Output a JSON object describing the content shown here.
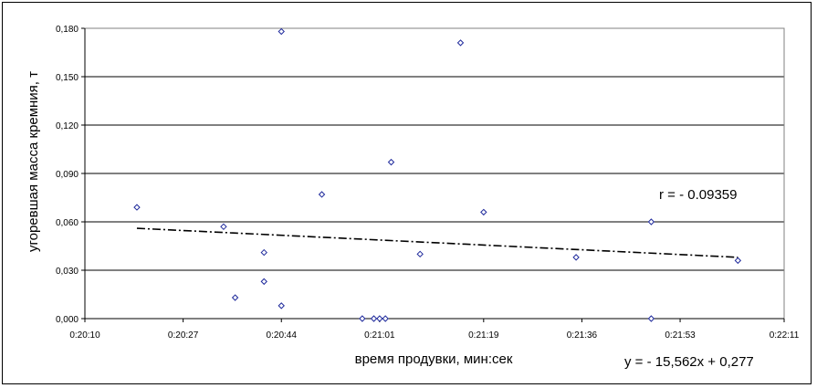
{
  "chart_data": {
    "type": "scatter",
    "xlabel": "время продувки, мин:сек",
    "ylabel": "угоревшая масса кремния, т",
    "x_ticks": [
      "0:20:10",
      "0:20:27",
      "0:20:44",
      "0:21:01",
      "0:21:19",
      "0:21:36",
      "0:21:53",
      "0:22:11"
    ],
    "y_ticks": [
      "0,000",
      "0,030",
      "0,060",
      "0,090",
      "0,120",
      "0,150",
      "0,180"
    ],
    "xlim": [
      "0:20:10",
      "0:22:11"
    ],
    "ylim": [
      0,
      0.18
    ],
    "grid": "horizontal",
    "colors": {
      "marker": "#1f2a9c",
      "grid": "#000000",
      "trend": "#000000"
    },
    "points": [
      {
        "x": "0:20:19",
        "y": 0.069
      },
      {
        "x": "0:20:34",
        "y": 0.057
      },
      {
        "x": "0:20:36",
        "y": 0.013
      },
      {
        "x": "0:20:41",
        "y": 0.041
      },
      {
        "x": "0:20:41",
        "y": 0.023
      },
      {
        "x": "0:20:44",
        "y": 0.178
      },
      {
        "x": "0:20:44",
        "y": 0.008
      },
      {
        "x": "0:20:51",
        "y": 0.077
      },
      {
        "x": "0:20:58",
        "y": 0.0
      },
      {
        "x": "0:21:00",
        "y": 0.0
      },
      {
        "x": "0:21:01",
        "y": 0.0
      },
      {
        "x": "0:21:02",
        "y": 0.0
      },
      {
        "x": "0:21:03",
        "y": 0.097
      },
      {
        "x": "0:21:08",
        "y": 0.04
      },
      {
        "x": "0:21:15",
        "y": 0.171
      },
      {
        "x": "0:21:19",
        "y": 0.066
      },
      {
        "x": "0:21:35",
        "y": 0.038
      },
      {
        "x": "0:21:48",
        "y": 0.06
      },
      {
        "x": "0:21:48",
        "y": 0.0
      },
      {
        "x": "0:22:03",
        "y": 0.036
      }
    ],
    "trendline": {
      "start": {
        "x": "0:20:19",
        "y": 0.056
      },
      "end": {
        "x": "0:22:03",
        "y": 0.038
      }
    },
    "annotations": {
      "correlation": "r = - 0.09359",
      "equation": "y = - 15,562x + 0,277"
    }
  }
}
